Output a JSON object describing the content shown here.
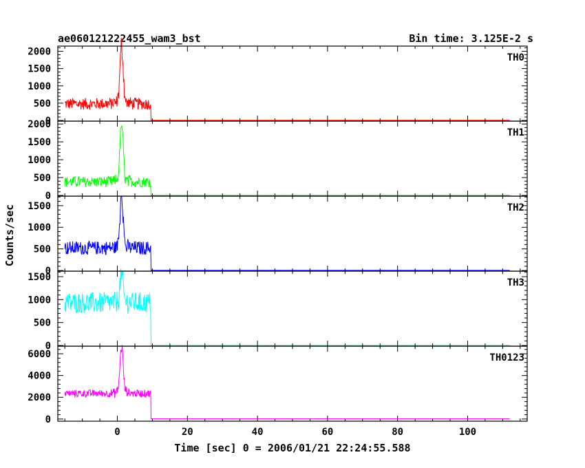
{
  "chart_data": {
    "type": "line",
    "title": "ae060121222455_wam3_bst",
    "subtitle": "Bin time: 3.125E-2 s",
    "xlabel": "Time [sec] 0 = 2006/01/21 22:24:55.588",
    "ylabel": "Counts/sec",
    "xlim": [
      -17,
      117
    ],
    "xticks": [
      0,
      20,
      40,
      60,
      80,
      100
    ],
    "grid": false,
    "panels": [
      {
        "name": "TH0",
        "color": "#ff0000",
        "ylim": [
          -20,
          2150
        ],
        "yticks": [
          0,
          500,
          1000,
          1500,
          2000
        ],
        "baseline": 480,
        "noise": 170,
        "peak_time": 1.2,
        "peak_value": 2100,
        "burst_end": 9.5,
        "quiet_level": 5
      },
      {
        "name": "TH1",
        "color": "#00ff00",
        "ylim": [
          -20,
          2080
        ],
        "yticks": [
          0,
          500,
          1000,
          1500,
          2000
        ],
        "baseline": 380,
        "noise": 150,
        "peak_time": 1.2,
        "peak_value": 1950,
        "burst_end": 9.5,
        "quiet_level": 5
      },
      {
        "name": "TH2",
        "color": "#0000ff",
        "ylim": [
          -15,
          1720
        ],
        "yticks": [
          0,
          500,
          1000,
          1500
        ],
        "baseline": 520,
        "noise": 160,
        "peak_time": 1.2,
        "peak_value": 1700,
        "burst_end": 9.5,
        "quiet_level": 5
      },
      {
        "name": "TH3",
        "color": "#00ffff",
        "ylim": [
          -15,
          1620
        ],
        "yticks": [
          0,
          500,
          1000,
          1500
        ],
        "baseline": 930,
        "noise": 230,
        "peak_time": 1.2,
        "peak_value": 1500,
        "burst_end": 9.5,
        "quiet_level": 5
      },
      {
        "name": "TH0123",
        "color": "#ff00ff",
        "ylim": [
          -200,
          6700
        ],
        "yticks": [
          0,
          2000,
          4000,
          6000
        ],
        "baseline": 2350,
        "noise": 350,
        "peak_time": 1.2,
        "peak_value": 6500,
        "burst_end": 9.5,
        "quiet_level": 20
      }
    ]
  }
}
